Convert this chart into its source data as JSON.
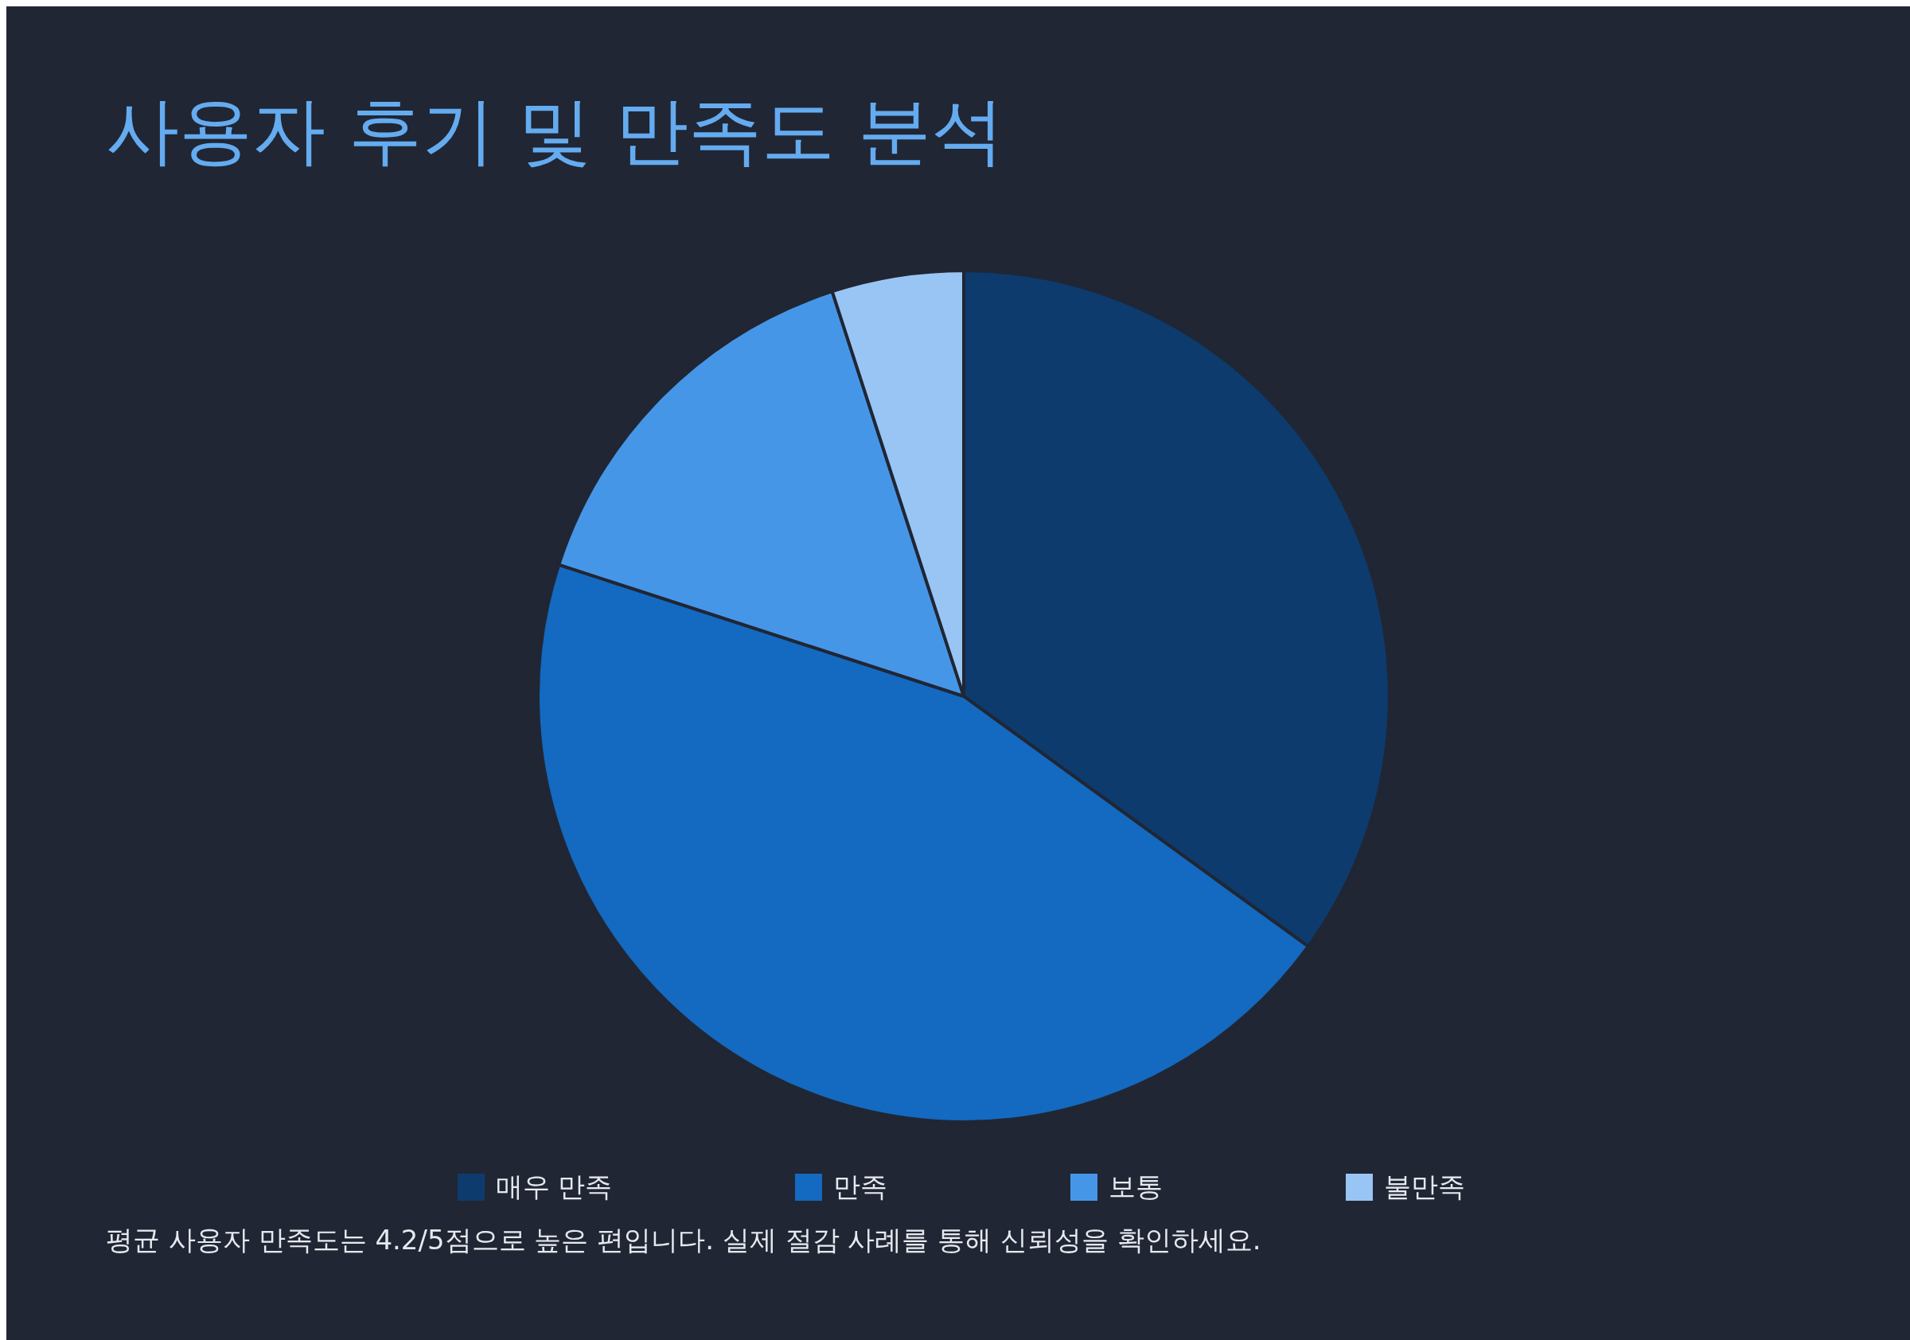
{
  "chart_data": {
    "type": "pie",
    "title": "사용자 후기 및 만족도 분석",
    "categories": [
      "매우 만족",
      "만족",
      "보통",
      "불만족"
    ],
    "values": [
      35,
      45,
      15,
      5
    ],
    "colors": [
      "#0d3b6e",
      "#1469c0",
      "#4696e8",
      "#99c5f5"
    ],
    "legend": "bottom",
    "annotations": [
      "평균 사용자 만족도는 4.2/5점으로 높은 편입니다. 실제 절감 사례를 통해 신뢰성을 확인하세요."
    ]
  }
}
